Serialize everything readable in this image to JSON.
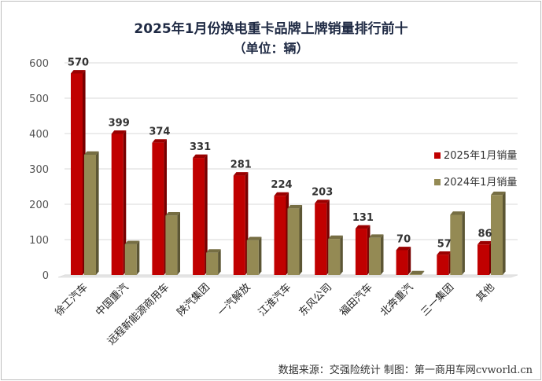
{
  "title": "2025年1月份换电重卡品牌上牌销量排行前十",
  "subtitle": "（单位：辆）",
  "footer": "数据来源：交强险统计  制图：第一商用车网cvworld.cn",
  "colors": {
    "series_2025": "#c00000",
    "series_2024": "#948a54",
    "grid": "#d9d9d9"
  },
  "chart_data": {
    "type": "bar",
    "categories": [
      "徐工汽车",
      "中国重汽",
      "远程新能源商用车",
      "陕汽集团",
      "一汽解放",
      "江淮汽车",
      "东风公司",
      "福田汽车",
      "北奔重汽",
      "三一集团",
      "其他"
    ],
    "series": [
      {
        "name": "2025年1月销量",
        "values": [
          570,
          399,
          374,
          331,
          281,
          224,
          203,
          131,
          70,
          57,
          86
        ]
      },
      {
        "name": "2024年1月销量",
        "values": [
          340,
          87,
          168,
          63,
          98,
          188,
          102,
          105,
          2,
          170,
          226
        ]
      }
    ],
    "data_labels": [
      "570",
      "399",
      "374",
      "331",
      "281",
      "224",
      "203",
      "131",
      "70",
      "57",
      "86"
    ],
    "yticks": [
      "0",
      "100",
      "200",
      "300",
      "400",
      "500",
      "600"
    ],
    "ylim": [
      0,
      600
    ],
    "grid": true,
    "legend_position": "right"
  }
}
